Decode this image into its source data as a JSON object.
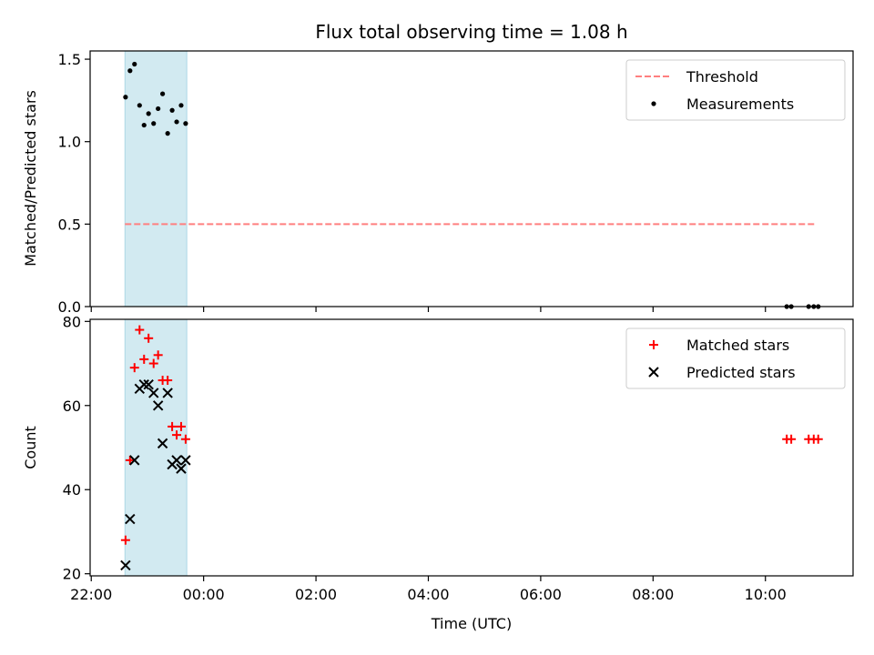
{
  "chart_data": {
    "type": "scatter",
    "title": "Flux total observing time = 1.08 h",
    "xlabel": "Time (UTC)",
    "x_ticks": [
      "22:00",
      "00:00",
      "02:00",
      "04:00",
      "06:00",
      "08:00",
      "10:00"
    ],
    "x_tick_hours": [
      22,
      24,
      26,
      28,
      30,
      32,
      34
    ],
    "xlim_hours": [
      21.98,
      35.56
    ],
    "shaded_interval_hours": [
      22.6,
      23.7
    ],
    "shade_color": "#add8e6",
    "panels": [
      {
        "ylabel": "Matched/Predicted stars",
        "ylim": [
          0,
          1.55
        ],
        "y_ticks": [
          0.0,
          0.5,
          1.0,
          1.5
        ],
        "y_tick_labels": [
          "0.0",
          "0.5",
          "1.0",
          "1.5"
        ],
        "legend": [
          "Threshold",
          "Measurements"
        ],
        "legend_position": "upper right",
        "threshold": {
          "name": "Threshold",
          "y": 0.5,
          "x_range_hours": [
            22.6,
            34.9
          ],
          "color": "#ff7f7f",
          "style": "dashed"
        },
        "series": [
          {
            "name": "Measurements",
            "marker": "dot",
            "color": "#000000",
            "points": [
              [
                22.61,
                1.27
              ],
              [
                22.69,
                1.43
              ],
              [
                22.77,
                1.47
              ],
              [
                22.86,
                1.22
              ],
              [
                22.94,
                1.1
              ],
              [
                23.02,
                1.17
              ],
              [
                23.11,
                1.11
              ],
              [
                23.19,
                1.2
              ],
              [
                23.27,
                1.29
              ],
              [
                23.36,
                1.05
              ],
              [
                23.44,
                1.19
              ],
              [
                23.52,
                1.12
              ],
              [
                23.6,
                1.22
              ],
              [
                23.68,
                1.11
              ],
              [
                34.38,
                0.0
              ],
              [
                34.46,
                0.0
              ],
              [
                34.77,
                0.0
              ],
              [
                34.86,
                0.0
              ],
              [
                34.94,
                0.0
              ]
            ]
          }
        ]
      },
      {
        "ylabel": "Count",
        "ylim": [
          19.5,
          80.5
        ],
        "y_ticks": [
          20,
          40,
          60,
          80
        ],
        "y_tick_labels": [
          "20",
          "40",
          "60",
          "80"
        ],
        "legend": [
          "Matched stars",
          "Predicted stars"
        ],
        "legend_position": "upper right",
        "series": [
          {
            "name": "Matched stars",
            "marker": "plus",
            "color": "#ff0000",
            "points": [
              [
                22.61,
                28
              ],
              [
                22.69,
                47
              ],
              [
                22.77,
                69
              ],
              [
                22.86,
                78
              ],
              [
                22.94,
                71
              ],
              [
                23.02,
                76
              ],
              [
                23.11,
                70
              ],
              [
                23.19,
                72
              ],
              [
                23.27,
                66
              ],
              [
                23.36,
                66
              ],
              [
                23.44,
                55
              ],
              [
                23.52,
                53
              ],
              [
                23.6,
                55
              ],
              [
                23.68,
                52
              ],
              [
                34.38,
                52
              ],
              [
                34.46,
                52
              ],
              [
                34.77,
                52
              ],
              [
                34.86,
                52
              ],
              [
                34.94,
                52
              ]
            ]
          },
          {
            "name": "Predicted stars",
            "marker": "x",
            "color": "#000000",
            "points": [
              [
                22.61,
                22
              ],
              [
                22.69,
                33
              ],
              [
                22.77,
                47
              ],
              [
                22.86,
                64
              ],
              [
                22.94,
                65
              ],
              [
                23.02,
                65
              ],
              [
                23.11,
                63
              ],
              [
                23.19,
                60
              ],
              [
                23.27,
                51
              ],
              [
                23.36,
                63
              ],
              [
                23.44,
                46
              ],
              [
                23.52,
                47
              ],
              [
                23.6,
                45
              ],
              [
                23.68,
                47
              ]
            ]
          }
        ]
      }
    ]
  }
}
